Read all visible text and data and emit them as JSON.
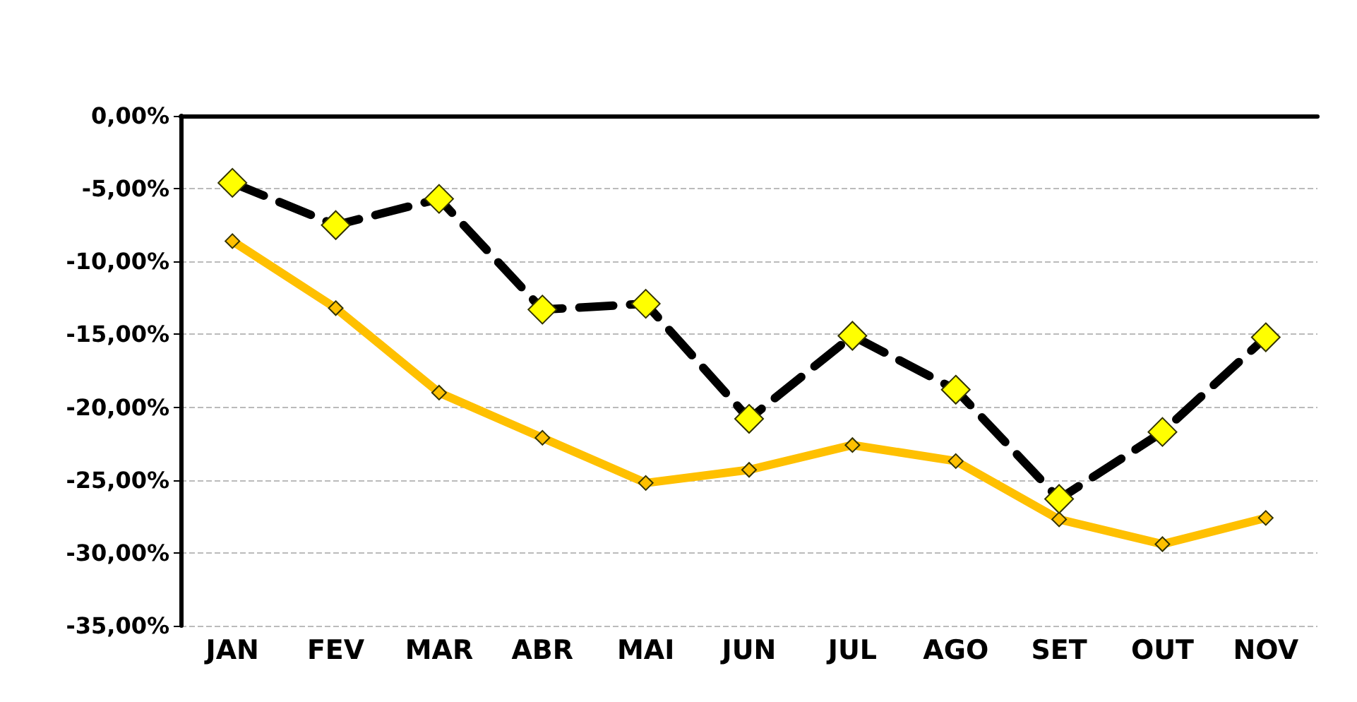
{
  "chart_data": {
    "type": "line",
    "categories": [
      "JAN",
      "FEV",
      "MAR",
      "ABR",
      "MAI",
      "JUN",
      "JUL",
      "AGO",
      "SET",
      "OUT",
      "NOV"
    ],
    "series": [
      {
        "color": "#ffc000",
        "line_style": "solid",
        "values": [
          -8.6,
          -13.2,
          -19.0,
          -22.1,
          -25.2,
          -24.3,
          -22.6,
          -23.7,
          -27.7,
          -29.4,
          -27.6
        ]
      },
      {
        "color": "#000000",
        "line_style": "dashed",
        "values": [
          -4.6,
          -7.5,
          -5.7,
          -13.3,
          -12.9,
          -20.8,
          -15.1,
          -18.8,
          -26.3,
          -21.7,
          -15.2
        ]
      }
    ],
    "ylim": [
      -35,
      0
    ],
    "yticks": [
      {
        "value": 0,
        "label": "0,00%"
      },
      {
        "value": -5,
        "label": "-5,00%"
      },
      {
        "value": -10,
        "label": "-10,00%"
      },
      {
        "value": -15,
        "label": "-15,00%"
      },
      {
        "value": -20,
        "label": "-20,00%"
      },
      {
        "value": -25,
        "label": "-25,00%"
      },
      {
        "value": -30,
        "label": "-30,00%"
      },
      {
        "value": -35,
        "label": "-35,00%"
      }
    ],
    "grid": "y",
    "marker": "diamond"
  }
}
